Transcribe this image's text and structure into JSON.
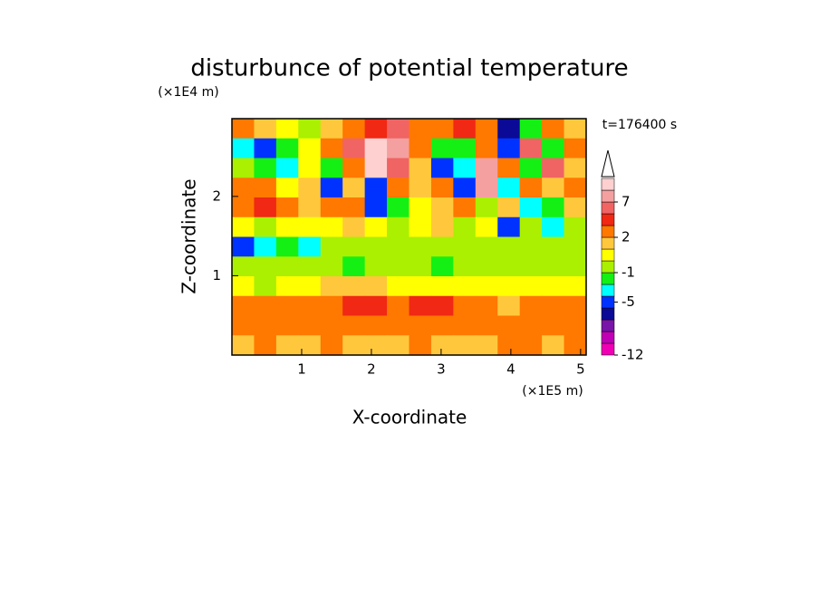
{
  "chart_data": {
    "type": "contour",
    "title": "disturbunce of potential temperature",
    "x_label": "X-coordinate",
    "y_label": "Z-coordinate",
    "x_unit": "(×1E5 m)",
    "y_unit": "(×1E4 m)",
    "time_label": "t=176400 s",
    "xlim": [
      0,
      5.08
    ],
    "ylim": [
      0,
      2.98
    ],
    "xticks": [
      1,
      2,
      3,
      4,
      5
    ],
    "yticks": [
      1,
      2
    ],
    "levels": [
      -12,
      -10,
      -9,
      -7,
      -6,
      -4,
      -3,
      -1,
      0,
      1,
      2,
      4,
      5,
      7,
      9,
      11
    ],
    "colors": [
      "#f000b4",
      "#c000b4",
      "#7814a8",
      "#0a0a96",
      "#0032ff",
      "#00ffff",
      "#14f014",
      "#aaf000",
      "#ffff00",
      "#ffc83c",
      "#ff7800",
      "#f02814",
      "#f06464",
      "#f4a0a0",
      "#ffd0d0"
    ],
    "colorbar_ticks": [
      -12,
      -5,
      -1,
      2,
      7
    ],
    "field": [
      [
        2,
        1,
        0,
        -1,
        1,
        2,
        4,
        5,
        3,
        2,
        4,
        3,
        -7,
        -3,
        2,
        1
      ],
      [
        -4,
        -6,
        -2,
        0,
        2,
        5,
        9,
        7,
        3,
        -3,
        -2,
        2,
        -5,
        5,
        -2,
        3
      ],
      [
        -1,
        -2,
        -4,
        0,
        -3,
        3,
        9,
        5,
        1,
        -5,
        -4,
        7,
        3,
        -3,
        5,
        1
      ],
      [
        2,
        2,
        0,
        1,
        -5,
        1,
        -6,
        3,
        1,
        3,
        -5,
        7,
        -4,
        3,
        1,
        2
      ],
      [
        3,
        4,
        3,
        1,
        3,
        2,
        -6,
        -2,
        0,
        1,
        2,
        -1,
        1,
        -4,
        -3,
        1
      ],
      [
        0,
        -1,
        0,
        0,
        0,
        1,
        0,
        -1,
        0,
        1,
        -1,
        0,
        -5,
        -1,
        -4,
        -1
      ],
      [
        -5,
        -4,
        -3,
        -4,
        -1,
        -1,
        -1,
        -1,
        -1,
        -1,
        -1,
        -1,
        -1,
        -1,
        -1,
        -1
      ],
      [
        -1,
        -1,
        -1,
        -1,
        -1,
        -3,
        -1,
        -1,
        -1,
        -3,
        -1,
        -1,
        -1,
        -1,
        -1,
        -1
      ],
      [
        0,
        -1,
        0,
        0,
        1,
        1,
        1,
        0,
        0,
        0,
        0,
        0,
        0,
        0,
        0,
        0
      ],
      [
        2,
        3,
        2,
        2,
        3,
        4,
        4,
        3,
        4,
        4,
        3,
        2,
        1,
        2,
        2,
        2
      ],
      [
        2,
        3,
        2,
        3,
        2,
        2,
        3,
        2,
        2,
        3,
        2,
        2,
        3,
        3,
        2,
        2
      ],
      [
        1,
        2,
        1,
        1,
        2,
        1,
        1,
        1,
        2,
        1,
        1,
        1,
        2,
        2,
        1,
        2
      ]
    ]
  }
}
